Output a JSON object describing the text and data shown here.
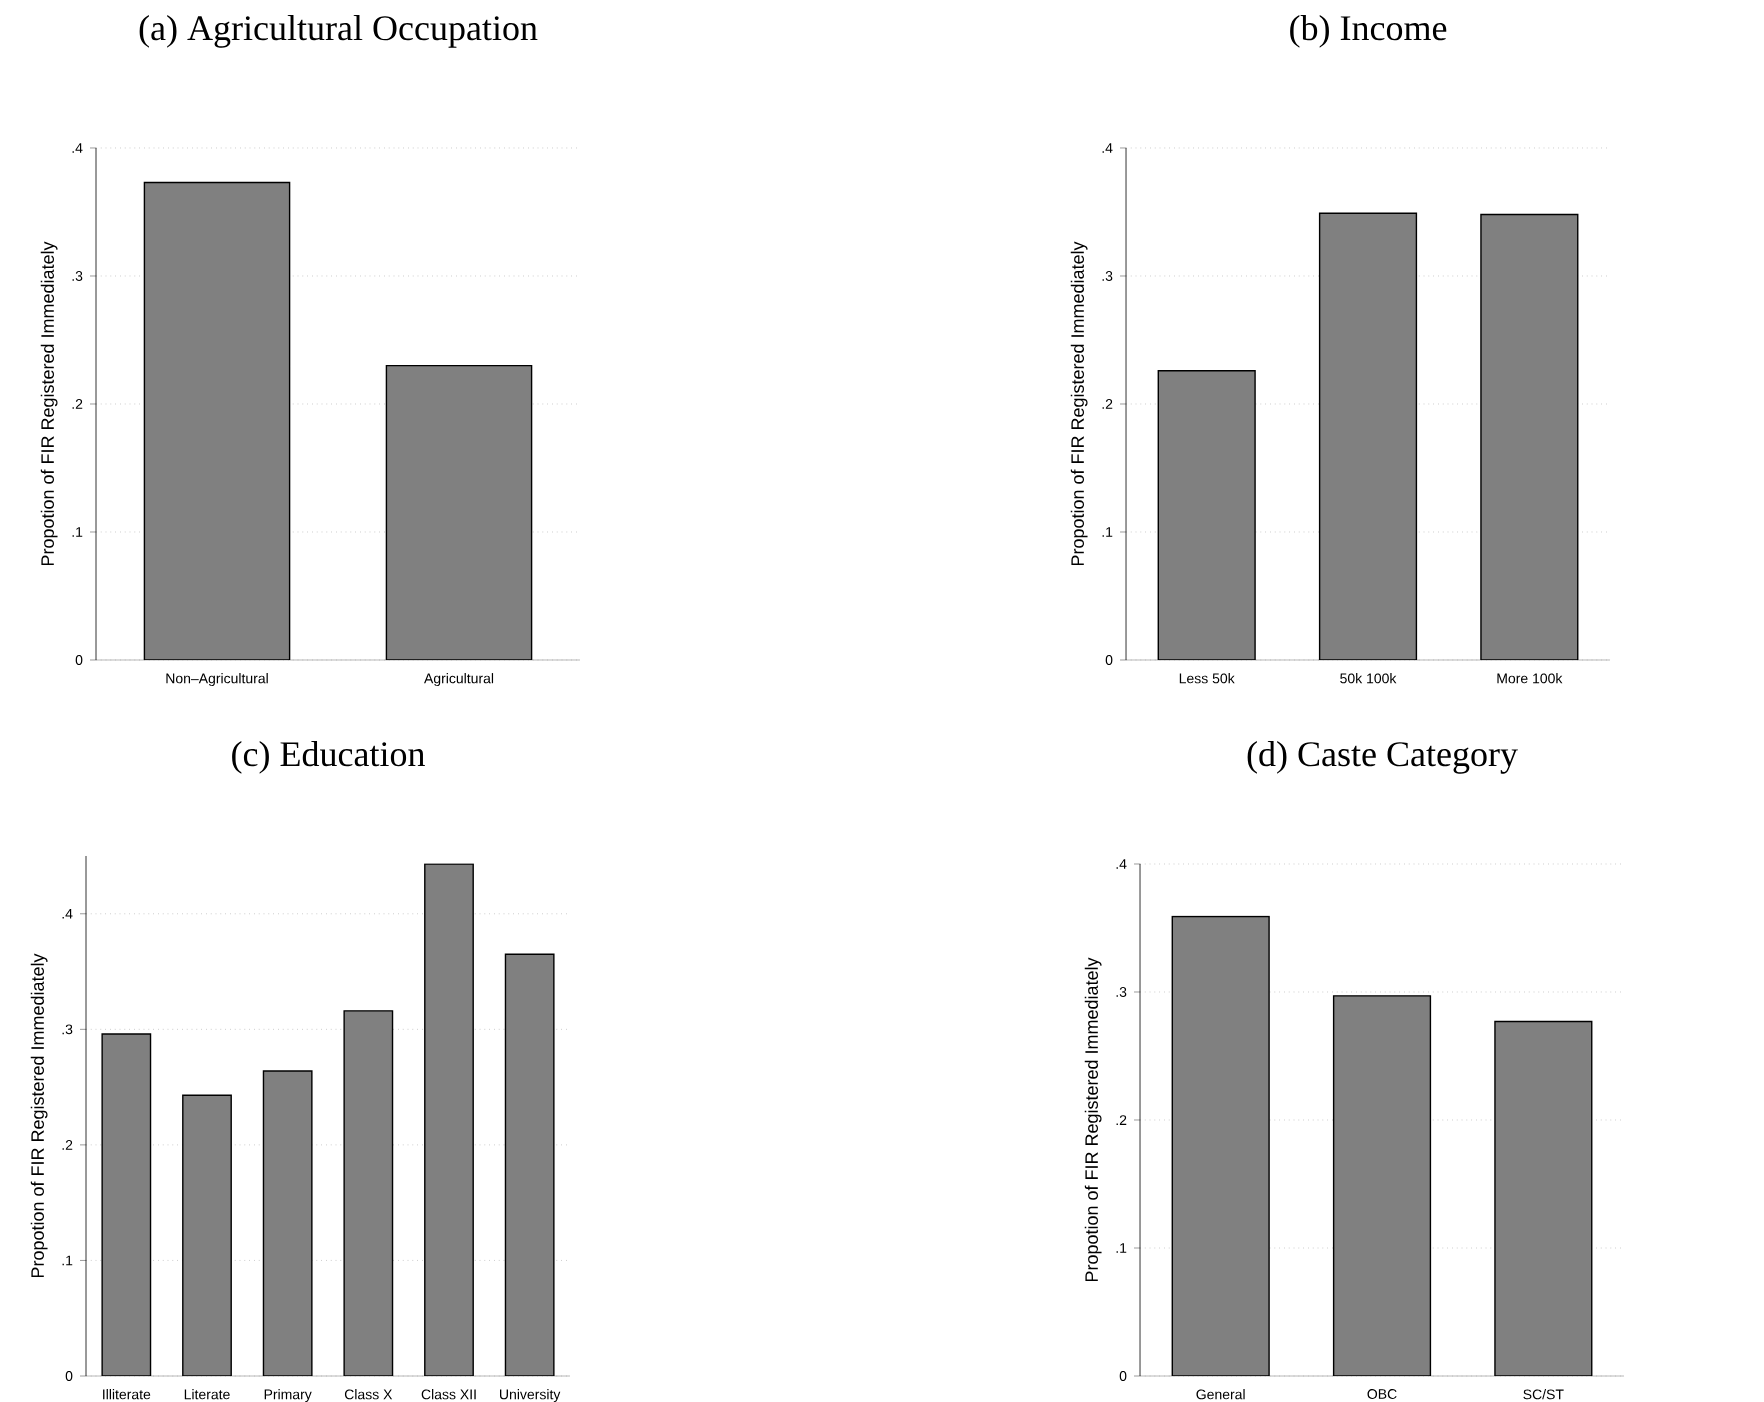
{
  "chart_data": [
    {
      "type": "bar",
      "title": "(a) Agricultural Occupation",
      "ylabel": "Propotion of FIR Registered Immediately",
      "categories": [
        "Non–Agricultural",
        "Agricultural"
      ],
      "values": [
        0.373,
        0.23
      ],
      "color": "#808080",
      "ylim": [
        0,
        0.4
      ],
      "yticks": [
        0,
        {
          "value": 0.1,
          "label": ".1"
        },
        {
          "value": 0.2,
          "label": ".2"
        },
        {
          "value": 0.3,
          "label": ".3"
        },
        {
          "value": 0.4,
          "label": ".4"
        }
      ],
      "grid": "y"
    },
    {
      "type": "bar",
      "title": "(b) Income",
      "ylabel": "Propotion of FIR Registered Immediately",
      "categories": [
        "Less 50k",
        "50k 100k",
        "More 100k"
      ],
      "values": [
        0.226,
        0.349,
        0.348
      ],
      "color": "#808080",
      "ylim": [
        0,
        0.4
      ],
      "yticks": [
        0,
        {
          "value": 0.1,
          "label": ".1"
        },
        {
          "value": 0.2,
          "label": ".2"
        },
        {
          "value": 0.3,
          "label": ".3"
        },
        {
          "value": 0.4,
          "label": ".4"
        }
      ],
      "grid": "y"
    },
    {
      "type": "bar",
      "title": "(c) Education",
      "ylabel": "Propotion of FIR Registered Immediately",
      "categories": [
        "Illiterate",
        "Literate",
        "Primary",
        "Class X",
        "Class XII",
        "University"
      ],
      "values": [
        0.296,
        0.243,
        0.264,
        0.316,
        0.443,
        0.365
      ],
      "color": "#808080",
      "ylim": [
        0,
        0.45
      ],
      "yticks": [
        0,
        {
          "value": 0.1,
          "label": ".1"
        },
        {
          "value": 0.2,
          "label": ".2"
        },
        {
          "value": 0.3,
          "label": ".3"
        },
        {
          "value": 0.4,
          "label": ".4"
        }
      ],
      "grid": "y"
    },
    {
      "type": "bar",
      "title": "(d) Caste Category",
      "ylabel": "Propotion of FIR Registered Immediately",
      "categories": [
        "General",
        "OBC",
        "SC/ST"
      ],
      "values": [
        0.359,
        0.297,
        0.277
      ],
      "color": "#808080",
      "ylim": [
        0,
        0.4
      ],
      "yticks": [
        0,
        {
          "value": 0.1,
          "label": ".1"
        },
        {
          "value": 0.2,
          "label": ".2"
        },
        {
          "value": 0.3,
          "label": ".3"
        },
        {
          "value": 0.4,
          "label": ".4"
        }
      ],
      "grid": "y"
    }
  ]
}
